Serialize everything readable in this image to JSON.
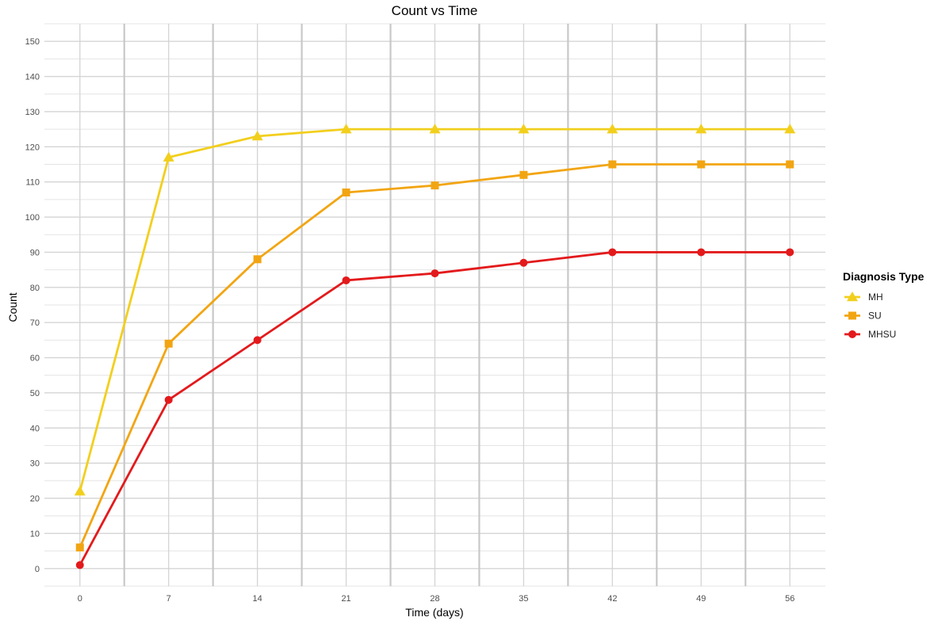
{
  "chart_data": {
    "type": "line",
    "title": "Count vs Time",
    "xlabel": "Time (days)",
    "ylabel": "Count",
    "x": [
      0,
      7,
      14,
      21,
      28,
      35,
      42,
      49,
      56
    ],
    "xlim": [
      -2.8,
      58.8
    ],
    "ylim": [
      -5,
      155
    ],
    "yticks": [
      0,
      10,
      20,
      30,
      40,
      50,
      60,
      70,
      80,
      90,
      100,
      110,
      120,
      130,
      140,
      150
    ],
    "grid": true,
    "legend_title": "Diagnosis Type",
    "legend_position": "right",
    "series": [
      {
        "name": "MH",
        "color": "#F2CF1D",
        "marker": "triangle",
        "values": [
          22,
          117,
          123,
          125,
          125,
          125,
          125,
          125,
          125
        ]
      },
      {
        "name": "SU",
        "color": "#F2A512",
        "marker": "square",
        "values": [
          6,
          64,
          88,
          107,
          109,
          112,
          115,
          115,
          115
        ]
      },
      {
        "name": "MHSU",
        "color": "#E31A1C",
        "marker": "circle",
        "values": [
          1,
          48,
          65,
          82,
          84,
          87,
          90,
          90,
          90
        ]
      }
    ]
  }
}
